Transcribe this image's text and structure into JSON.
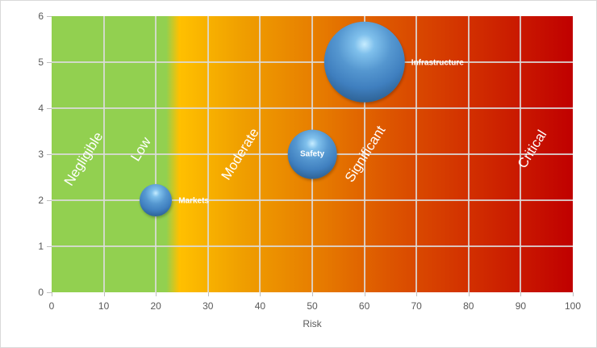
{
  "chart_data": {
    "type": "bubble",
    "title": "",
    "xlabel": "Risk",
    "ylabel": "",
    "xlim": [
      0,
      100
    ],
    "ylim": [
      0,
      6
    ],
    "x_ticks": [
      "0",
      "10",
      "20",
      "30",
      "40",
      "50",
      "60",
      "70",
      "80",
      "90",
      "100"
    ],
    "y_ticks": [
      "0",
      "1",
      "2",
      "3",
      "4",
      "5",
      "6"
    ],
    "grid": true,
    "legend": "none",
    "series": [
      {
        "name": "Markets",
        "x": 20,
        "y": 2,
        "size": 1,
        "label_position": "right"
      },
      {
        "name": "Safety",
        "x": 50,
        "y": 3,
        "size": 2.3,
        "label_position": "center"
      },
      {
        "name": "Infrastructure",
        "x": 60,
        "y": 5,
        "size": 6.3,
        "label_position": "right"
      }
    ],
    "zones": [
      {
        "label": "Negligible",
        "color": "#92D050"
      },
      {
        "label": "Low",
        "color": "#92D050"
      },
      {
        "label": "Moderate",
        "color": "#FFC000"
      },
      {
        "label": "Significant",
        "color": "#E67A00"
      },
      {
        "label": "Critical",
        "color": "#C00000"
      }
    ],
    "bubble_color": "#4F8FCB"
  }
}
